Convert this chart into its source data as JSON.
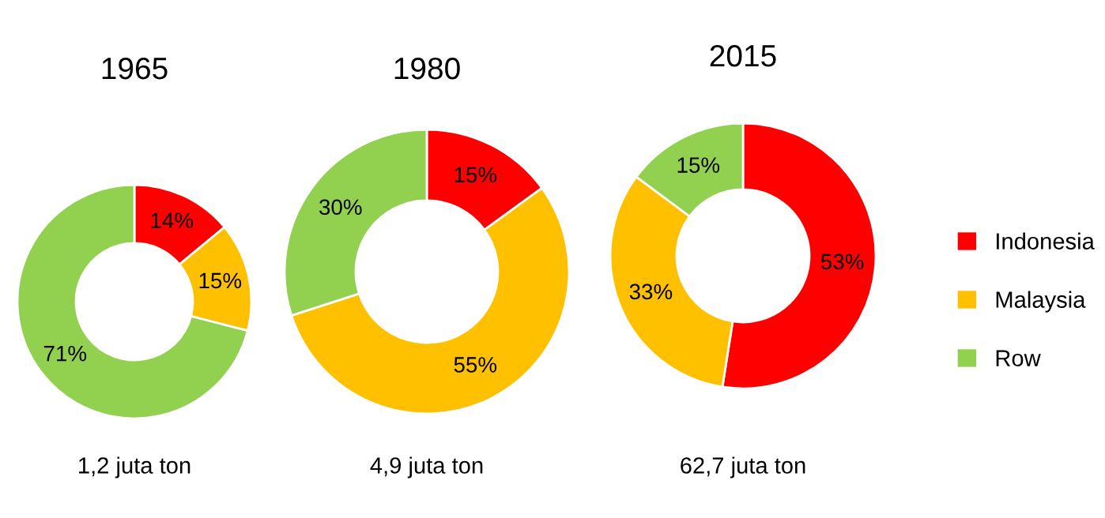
{
  "chart_data": [
    {
      "type": "donut",
      "title": "1965",
      "categories": [
        null,
        null,
        null
      ],
      "values": [
        14,
        15,
        71
      ],
      "colors": [
        "#ff0000",
        "#ffc000",
        "#92d050"
      ],
      "value_labels": [
        "14%",
        "15%",
        "71%"
      ],
      "annotations": [
        "1,2 juta ton"
      ],
      "legend": false
    },
    {
      "type": "donut",
      "title": "1980",
      "categories": [
        null,
        null,
        null
      ],
      "values": [
        15,
        55,
        30
      ],
      "colors": [
        "#ff0000",
        "#ffc000",
        "#92d050"
      ],
      "value_labels": [
        "15%",
        "55%",
        "30%"
      ],
      "annotations": [
        "4,9 juta ton"
      ],
      "legend": false
    },
    {
      "type": "donut",
      "title": "2015",
      "categories": [
        "Indonesia",
        "Malaysia",
        "Row"
      ],
      "values": [
        53,
        33,
        15
      ],
      "colors": [
        "#ff0000",
        "#ffc000",
        "#92d050"
      ],
      "value_labels": [
        "53%",
        "33%",
        "15%"
      ],
      "annotations": [
        "62,7 juta ton"
      ],
      "legend": "right"
    }
  ]
}
